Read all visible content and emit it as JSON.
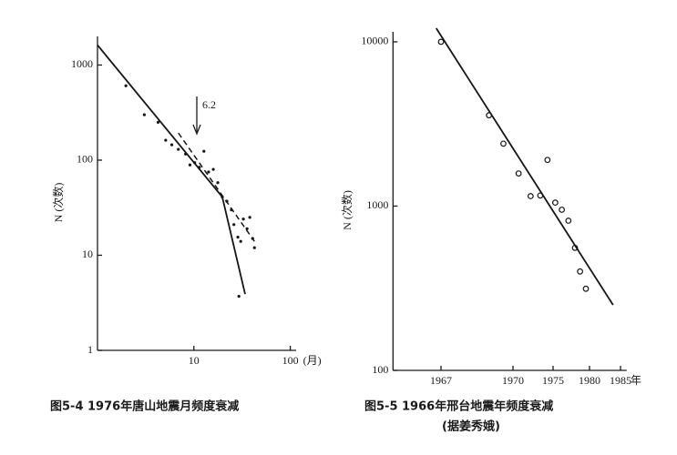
{
  "chart_data": [
    {
      "type": "scatter",
      "marker": "dot",
      "color": "#151515",
      "caption": "图5-4  1976年唐山地震月频度衰减",
      "y_label": "N (次数)",
      "x_label": "(月)",
      "annotation": "6.2",
      "xscale": "log",
      "yscale": "log",
      "xlim": [
        1,
        115
      ],
      "ylim": [
        1,
        2000
      ],
      "xticks": [
        10,
        100
      ],
      "yticks": [
        1,
        10,
        100,
        1000
      ],
      "x": [
        1.97,
        3.06,
        4.25,
        5.1,
        5.9,
        6.9,
        8.2,
        9.1,
        10.2,
        11.4,
        12.7,
        14.2,
        15.9,
        17.7,
        19.7,
        22,
        24.5,
        26,
        28.6,
        30.6,
        32.6,
        35.6,
        38,
        40.7,
        42.5,
        29.3
      ],
      "values": [
        605,
        300,
        250,
        162,
        145,
        130,
        116,
        89,
        94,
        84,
        124,
        75,
        80,
        58,
        41,
        37,
        30,
        21,
        15.5,
        14,
        24,
        19,
        25,
        15,
        12,
        3.7
      ],
      "lines": [
        {
          "style": "solid",
          "x": [
            1,
            19.7,
            34
          ],
          "values": [
            1620,
            41,
            3.9
          ]
        },
        {
          "style": "dashed",
          "x": [
            6.9,
            42.5
          ],
          "values": [
            193,
            14
          ]
        }
      ]
    },
    {
      "type": "scatter",
      "marker": "open",
      "color": "#151515",
      "caption": "图5-5  1966年邢台地震年频度衰减",
      "source": "(据姜秀娥)",
      "y_label": "N (次数)",
      "x_label": "年",
      "xscale": "ticked",
      "yscale": "log",
      "xlim": [
        1965,
        1986
      ],
      "ylim": [
        100,
        11500
      ],
      "xticks": [
        1967,
        1970,
        1975,
        1980,
        1985
      ],
      "yticks": [
        100,
        1000,
        10000
      ],
      "x": [
        1967,
        1969,
        1969.6,
        1970.7,
        1972.2,
        1973.4,
        1974.3,
        1975.3,
        1976.2,
        1977.1,
        1978,
        1978.7,
        1979.5
      ],
      "values": [
        10000,
        3570,
        2400,
        1580,
        1150,
        1160,
        1910,
        1050,
        950,
        815,
        557,
        400,
        314
      ],
      "lines": [
        {
          "style": "solid",
          "x": [
            1966.8,
            1983.8
          ],
          "values": [
            12100,
            250
          ]
        }
      ]
    }
  ]
}
